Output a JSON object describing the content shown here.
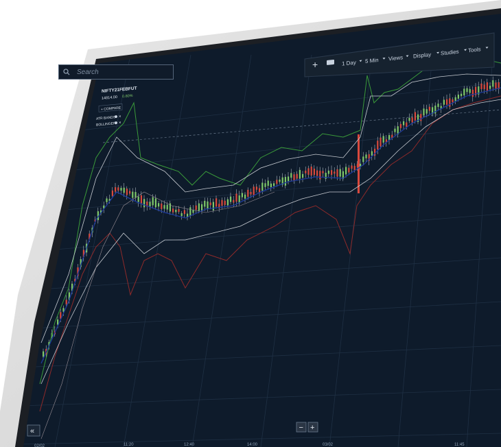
{
  "search": {
    "placeholder": "Search"
  },
  "toolbar": {
    "add_label": "+",
    "items": [
      "1 Day",
      "5 Min",
      "Views",
      "Display",
      "Studies",
      "Tools"
    ]
  },
  "instrument": {
    "symbol": "NIFTY21FEBFUT",
    "price_line": "14814.00",
    "change": "0.80%",
    "compare_label": "+ COMPARE"
  },
  "studies": [
    {
      "name": "ATR BANDS"
    },
    {
      "name": "BOLLINGER"
    }
  ],
  "zoom": {
    "minus": "−",
    "plus": "+"
  },
  "collapse_label": "«",
  "x_ticks": [
    "02/02",
    "11:20",
    "12:40",
    "14:00",
    "03/02",
    "11:45"
  ],
  "colors": {
    "background": "#0e1b2b",
    "bull": "#7fc86b",
    "bear": "#d9493d",
    "upper_band": "#3a9a3a",
    "lower_band": "#8e2a2a",
    "bollinger": "#c8ccd2",
    "average": "#1d3a9a"
  },
  "icons": [
    "search-icon",
    "plus-icon",
    "chat-icon",
    "caret-down-icon",
    "settings-icon",
    "close-icon",
    "chevron-left-icon"
  ]
}
